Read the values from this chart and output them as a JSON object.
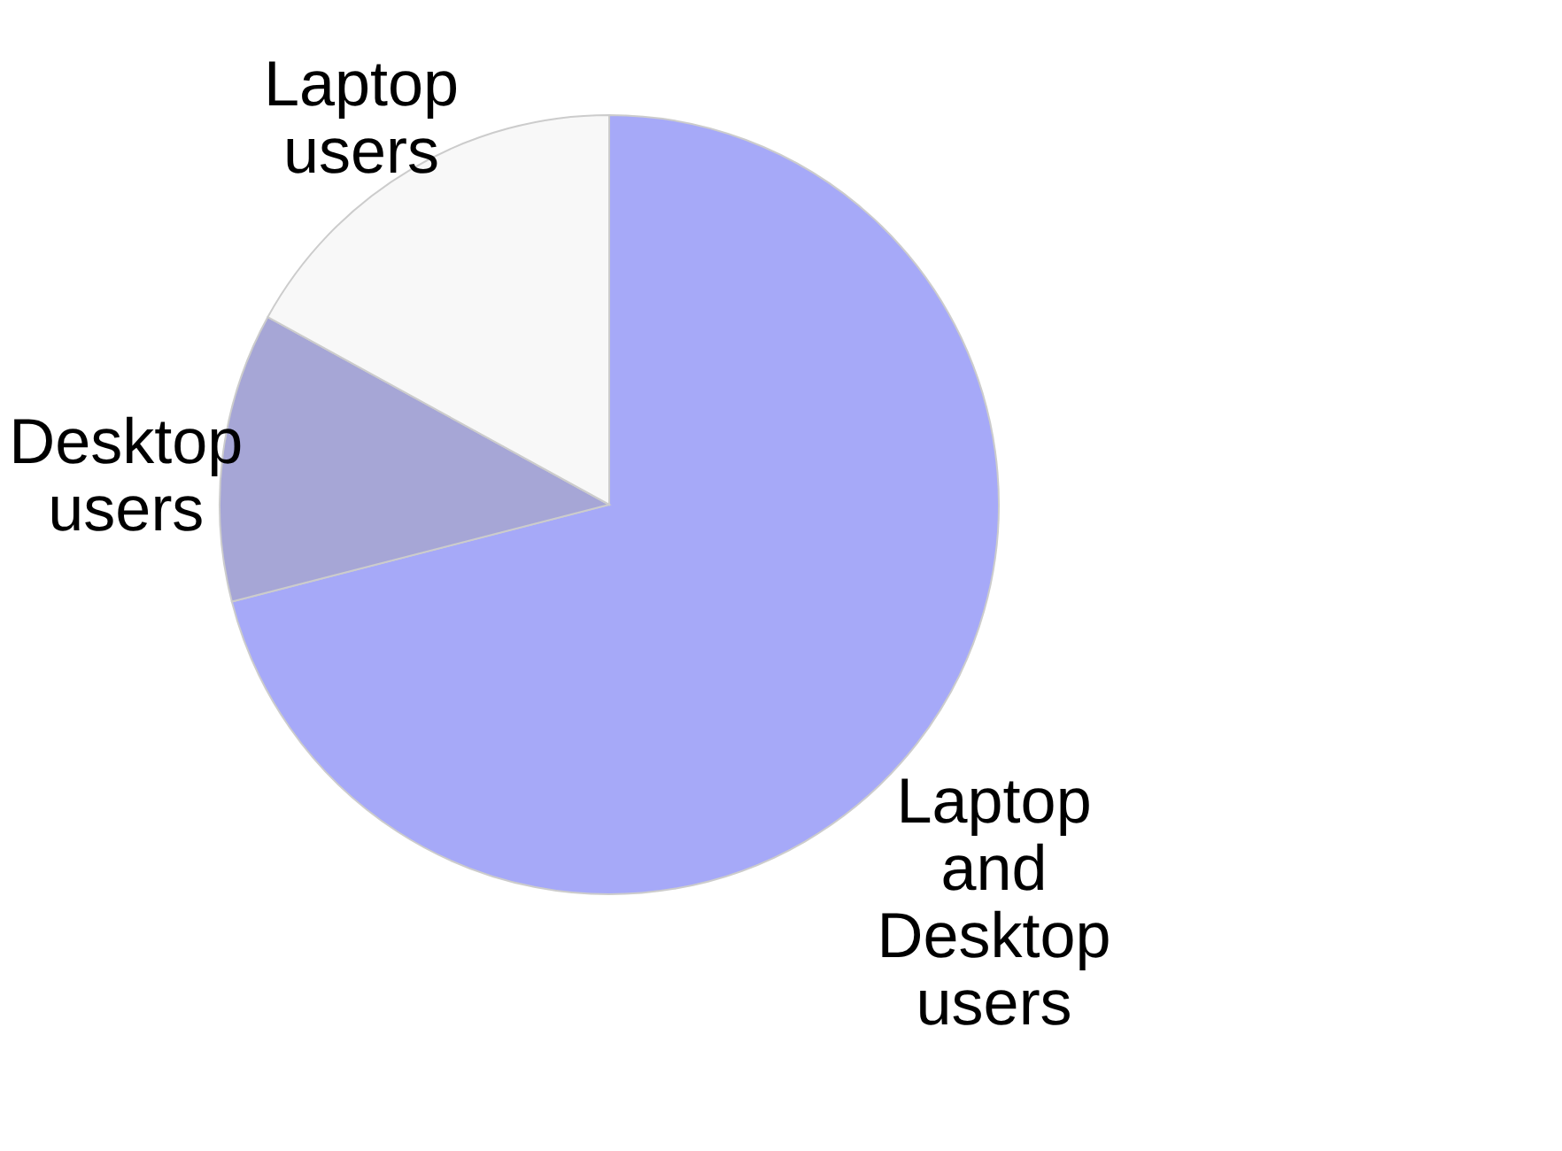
{
  "chart_data": {
    "type": "pie",
    "categories": [
      "Laptop and Desktop users",
      "Desktop users",
      "Laptop users"
    ],
    "values": [
      71,
      12,
      17
    ],
    "colors": [
      "#a6a9f8",
      "#a6a6d6",
      "#f8f8f8"
    ],
    "legend": false
  }
}
